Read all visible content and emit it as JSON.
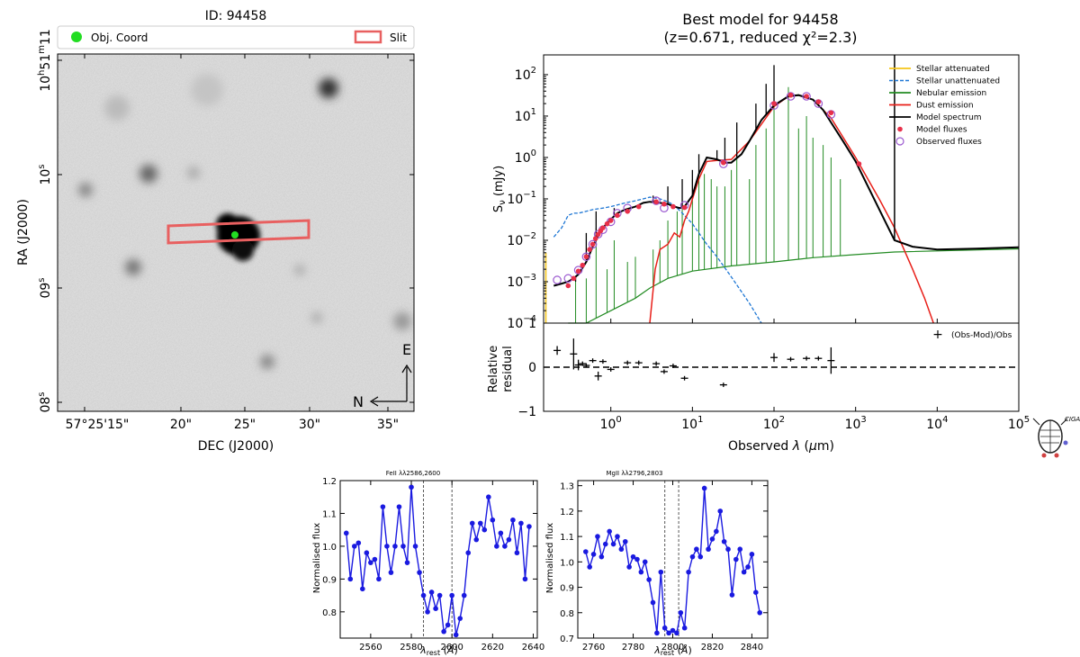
{
  "image_panel": {
    "title": "ID: 94458",
    "legend": {
      "marker_label": "Obj. Coord",
      "slit_label": "Slit"
    },
    "xlabel": "DEC (J2000)",
    "ylabel": "RA (J2000)",
    "xticks": [
      "57°25'15\"",
      "20\"",
      "25\"",
      "30\"",
      "35\""
    ],
    "yticks": [
      {
        "base": "10",
        "sup": "h",
        "mid": "51",
        "sup2": "m",
        "tail": "11",
        "full": "10h51m11"
      },
      {
        "base": "10",
        "sup": "s",
        "full": "10s"
      },
      {
        "base": "09",
        "sup": "s",
        "full": "09s"
      },
      {
        "base": "08",
        "sup": "s",
        "full": "08s"
      }
    ],
    "compass": {
      "north": "N",
      "east": "E"
    },
    "colors": {
      "marker": "#22dd22",
      "slit": "#e86060"
    }
  },
  "chart_data": [
    {
      "type": "line",
      "id": "sed",
      "title": "Best model for 94458",
      "subtitle": "(z=0.671, reduced χ²=2.3)",
      "xlabel": "Observed λ (μm)",
      "ylabel": "Sν (mJy)",
      "xscale": "log",
      "yscale": "log",
      "xlim": [
        0.15,
        100000
      ],
      "ylim": [
        0.0001,
        300
      ],
      "xticks": [
        {
          "value": 1,
          "base": "10",
          "exp": "0",
          "full": "10^0"
        },
        {
          "value": 10,
          "base": "10",
          "exp": "1",
          "full": "10^1"
        },
        {
          "value": 100,
          "base": "10",
          "exp": "2",
          "full": "10^2"
        },
        {
          "value": 1000,
          "base": "10",
          "exp": "3",
          "full": "10^3"
        },
        {
          "value": 10000,
          "base": "10",
          "exp": "4",
          "full": "10^4"
        },
        {
          "value": 100000,
          "base": "10",
          "exp": "5",
          "full": "10^5"
        }
      ],
      "yticks": [
        {
          "value": 0.0001,
          "base": "10",
          "exp": "−4",
          "full": "10^-4"
        },
        {
          "value": 0.001,
          "base": "10",
          "exp": "−3",
          "full": "10^-3"
        },
        {
          "value": 0.01,
          "base": "10",
          "exp": "−2",
          "full": "10^-2"
        },
        {
          "value": 0.1,
          "base": "10",
          "exp": "−1",
          "full": "10^-1"
        },
        {
          "value": 1,
          "base": "10",
          "exp": "0",
          "full": "10^0"
        },
        {
          "value": 10,
          "base": "10",
          "exp": "1",
          "full": "10^1"
        },
        {
          "value": 100,
          "base": "10",
          "exp": "2",
          "full": "10^2"
        }
      ],
      "legend": [
        {
          "label": "Stellar attenuated",
          "color": "#f5c518",
          "style": "solid"
        },
        {
          "label": "Stellar unattenuated",
          "color": "#1f77d4",
          "style": "dashed"
        },
        {
          "label": "Nebular emission",
          "color": "#228b22",
          "style": "solid"
        },
        {
          "label": "Dust emission",
          "color": "#e8201a",
          "style": "solid"
        },
        {
          "label": "Model spectrum",
          "color": "#000000",
          "style": "solid"
        },
        {
          "label": "Model fluxes",
          "color": "#e8304a",
          "style": "dot"
        },
        {
          "label": "Observed fluxes",
          "color": "#9b59d0",
          "style": "circle"
        }
      ],
      "series": [
        {
          "name": "Model spectrum",
          "x": [
            0.2,
            0.25,
            0.3,
            0.35,
            0.4,
            0.5,
            0.6,
            0.7,
            0.8,
            1.0,
            1.2,
            1.5,
            2.0,
            2.5,
            3.0,
            4.0,
            5.0,
            6.0,
            7.0,
            8.0,
            10,
            12,
            15,
            20,
            25,
            30,
            40,
            50,
            70,
            100,
            150,
            200,
            300,
            400,
            500,
            700,
            1000,
            2000,
            3000,
            5000,
            10000,
            30000,
            100000
          ],
          "y": [
            0.0008,
            0.0009,
            0.001,
            0.0012,
            0.0015,
            0.003,
            0.007,
            0.013,
            0.02,
            0.032,
            0.045,
            0.055,
            0.065,
            0.08,
            0.085,
            0.08,
            0.075,
            0.065,
            0.06,
            0.065,
            0.12,
            0.4,
            1.0,
            0.9,
            0.75,
            0.75,
            1.2,
            2.5,
            8,
            18,
            30,
            32,
            25,
            14,
            7,
            2.5,
            0.8,
            0.05,
            0.01,
            0.007,
            0.006,
            0.0063,
            0.0068
          ]
        },
        {
          "name": "Stellar unattenuated",
          "x": [
            0.2,
            0.25,
            0.3,
            0.35,
            0.4,
            0.5,
            0.6,
            0.8,
            1.0,
            1.5,
            2.0,
            3.0,
            4.0,
            5.0,
            6.0,
            8.0,
            10,
            15,
            20,
            30,
            50,
            70
          ],
          "y": [
            0.012,
            0.02,
            0.04,
            0.045,
            0.045,
            0.05,
            0.055,
            0.06,
            0.065,
            0.08,
            0.09,
            0.11,
            0.1,
            0.085,
            0.07,
            0.04,
            0.025,
            0.008,
            0.004,
            0.0013,
            0.0003,
            0.0001
          ]
        },
        {
          "name": "Nebular emission",
          "x": [
            0.3,
            0.5,
            1.0,
            2.0,
            3.0,
            5.0,
            10,
            30,
            100,
            300,
            1000,
            3000,
            100000
          ],
          "y": [
            0.0001,
            0.0001,
            0.0002,
            0.0004,
            0.0007,
            0.0012,
            0.0018,
            0.0024,
            0.003,
            0.0038,
            0.0045,
            0.0052,
            0.0062
          ]
        },
        {
          "name": "Dust emission",
          "x": [
            3.0,
            3.5,
            4.0,
            5.0,
            6.0,
            7.0,
            8.0,
            9.0,
            10,
            12,
            15,
            20,
            30,
            50,
            100,
            150,
            200,
            300,
            500,
            1000,
            2000,
            3000,
            5000,
            7000,
            9000
          ],
          "y": [
            0.0001,
            0.002,
            0.006,
            0.008,
            0.015,
            0.012,
            0.03,
            0.05,
            0.1,
            0.3,
            0.8,
            0.85,
            0.9,
            2.5,
            17,
            30,
            32,
            25,
            9,
            1.0,
            0.09,
            0.02,
            0.002,
            0.0004,
            0.0001
          ]
        },
        {
          "name": "Model fluxes",
          "x": [
            0.3,
            0.35,
            0.4,
            0.45,
            0.5,
            0.55,
            0.6,
            0.65,
            0.7,
            0.75,
            0.8,
            0.9,
            1.0,
            1.2,
            1.6,
            2.2,
            3.6,
            4.5,
            5.8,
            8.0,
            24,
            100,
            160,
            250,
            350,
            500,
            1100
          ],
          "y": [
            0.0008,
            0.0012,
            0.0018,
            0.0025,
            0.004,
            0.006,
            0.008,
            0.011,
            0.014,
            0.017,
            0.02,
            0.025,
            0.03,
            0.04,
            0.05,
            0.065,
            0.085,
            0.075,
            0.065,
            0.062,
            0.75,
            20,
            32,
            30,
            22,
            12,
            0.7
          ]
        },
        {
          "name": "Observed fluxes",
          "x": [
            0.22,
            0.3,
            0.4,
            0.5,
            0.6,
            0.7,
            0.8,
            1.0,
            1.2,
            1.6,
            3.6,
            4.5,
            8.0,
            24,
            100,
            160,
            250,
            350,
            500
          ],
          "y": [
            0.0011,
            0.0012,
            0.0019,
            0.004,
            0.008,
            0.014,
            0.018,
            0.028,
            0.045,
            0.06,
            0.09,
            0.06,
            0.07,
            0.7,
            18,
            30,
            30,
            20,
            11
          ]
        }
      ],
      "nebular_lines": {
        "x": [
          0.37,
          0.5,
          0.66,
          0.9,
          1.1,
          1.6,
          2.0,
          3.3,
          4.0,
          5.0,
          6.5,
          7.5,
          10,
          12,
          14,
          17,
          20,
          25,
          30,
          35,
          50,
          60,
          80,
          100,
          150,
          200,
          250,
          300,
          400,
          500,
          650
        ],
        "y": [
          0.001,
          0.0012,
          0.02,
          0.002,
          0.01,
          0.003,
          0.004,
          0.006,
          0.01,
          0.03,
          0.05,
          0.1,
          0.3,
          0.5,
          0.4,
          0.3,
          0.2,
          0.2,
          0.5,
          0.9,
          0.3,
          2.0,
          5,
          30,
          50,
          5,
          10,
          3,
          2,
          1,
          0.3
        ]
      },
      "model_lines": {
        "x": [
          0.37,
          0.5,
          0.66,
          1.1,
          3.3,
          5.0,
          7.5,
          10,
          12,
          17,
          20,
          25,
          35,
          60,
          80,
          100
        ],
        "y": [
          0.001,
          0.015,
          0.05,
          0.06,
          0.12,
          0.2,
          0.3,
          0.5,
          1.2,
          1.0,
          1.5,
          3,
          7,
          20,
          60,
          170
        ]
      }
    },
    {
      "type": "scatter",
      "id": "residual",
      "ylabel_line1": "Relative",
      "ylabel_line2": "residual",
      "ylim": [
        -1,
        1
      ],
      "yticks": [
        "1",
        "0",
        "−1"
      ],
      "legend_label": "(Obs-Mod)/Obs",
      "x": [
        0.22,
        0.35,
        0.4,
        0.45,
        0.5,
        0.6,
        0.7,
        0.8,
        1.0,
        1.6,
        2.2,
        3.6,
        4.5,
        5.8,
        8.0,
        24,
        100,
        160,
        250,
        350,
        500
      ],
      "y": [
        0.38,
        0.3,
        0.05,
        0.08,
        0.04,
        0.15,
        -0.2,
        0.13,
        -0.05,
        0.1,
        0.1,
        0.08,
        -0.1,
        0.03,
        -0.25,
        -0.4,
        0.22,
        0.18,
        0.2,
        0.2,
        0.15
      ],
      "yerr": [
        0.1,
        0.35,
        0.12,
        0.05,
        0.05,
        0.05,
        0.1,
        0.05,
        0.05,
        0.05,
        0.05,
        0.05,
        0.05,
        0.05,
        0.05,
        0.05,
        0.1,
        0.05,
        0.05,
        0.05,
        0.3
      ]
    },
    {
      "type": "line",
      "id": "feii",
      "title": "FeII λλ2586,2600",
      "xlabel": "λrest (Å)",
      "ylabel": "Normalised flux",
      "xlim": [
        2545,
        2642
      ],
      "ylim": [
        0.72,
        1.2
      ],
      "xticks": [
        "2560",
        "2580",
        "2600",
        "2620",
        "2640"
      ],
      "yticks": [
        "0.8",
        "0.9",
        "1.0",
        "1.1",
        "1.2"
      ],
      "vlines": [
        2586,
        2600
      ],
      "x": [
        2548,
        2550,
        2552,
        2554,
        2556,
        2558,
        2560,
        2562,
        2564,
        2566,
        2568,
        2570,
        2572,
        2574,
        2576,
        2578,
        2580,
        2582,
        2584,
        2586,
        2588,
        2590,
        2592,
        2594,
        2596,
        2598,
        2600,
        2602,
        2604,
        2606,
        2608,
        2610,
        2612,
        2614,
        2616,
        2618,
        2620,
        2622,
        2624,
        2626,
        2628,
        2630,
        2632,
        2634,
        2636,
        2638
      ],
      "y": [
        1.04,
        0.9,
        1.0,
        1.01,
        0.87,
        0.98,
        0.95,
        0.96,
        0.9,
        1.12,
        1.0,
        0.92,
        1.0,
        1.12,
        1.0,
        0.95,
        1.18,
        1.0,
        0.92,
        0.85,
        0.8,
        0.86,
        0.81,
        0.85,
        0.74,
        0.76,
        0.85,
        0.73,
        0.78,
        0.85,
        0.98,
        1.07,
        1.02,
        1.07,
        1.05,
        1.15,
        1.08,
        1.0,
        1.04,
        1.0,
        1.02,
        1.08,
        0.98,
        1.07,
        0.9,
        1.06
      ]
    },
    {
      "type": "line",
      "id": "mgii",
      "title": "MgII λλ2796,2803",
      "xlabel": "λrest (Å)",
      "ylabel": "Normalised flux",
      "xlim": [
        2752,
        2848
      ],
      "ylim": [
        0.7,
        1.32
      ],
      "xticks": [
        "2760",
        "2780",
        "2800",
        "2820",
        "2840"
      ],
      "yticks": [
        "0.7",
        "0.8",
        "0.9",
        "1.0",
        "1.1",
        "1.2",
        "1.3"
      ],
      "vlines": [
        2796,
        2803
      ],
      "x": [
        2756,
        2758,
        2760,
        2762,
        2764,
        2766,
        2768,
        2770,
        2772,
        2774,
        2776,
        2778,
        2780,
        2782,
        2784,
        2786,
        2788,
        2790,
        2792,
        2794,
        2796,
        2798,
        2800,
        2802,
        2804,
        2806,
        2808,
        2810,
        2812,
        2814,
        2816,
        2818,
        2820,
        2822,
        2824,
        2826,
        2828,
        2830,
        2832,
        2834,
        2836,
        2838,
        2840,
        2842,
        2844
      ],
      "y": [
        1.04,
        0.98,
        1.03,
        1.1,
        1.02,
        1.07,
        1.12,
        1.07,
        1.1,
        1.05,
        1.08,
        0.98,
        1.02,
        1.01,
        0.96,
        1.0,
        0.93,
        0.84,
        0.72,
        0.96,
        0.74,
        0.72,
        0.73,
        0.72,
        0.8,
        0.74,
        0.96,
        1.02,
        1.05,
        1.02,
        1.29,
        1.05,
        1.09,
        1.12,
        1.2,
        1.08,
        1.05,
        0.87,
        1.01,
        1.05,
        0.96,
        0.98,
        1.03,
        0.88,
        0.8
      ]
    }
  ]
}
